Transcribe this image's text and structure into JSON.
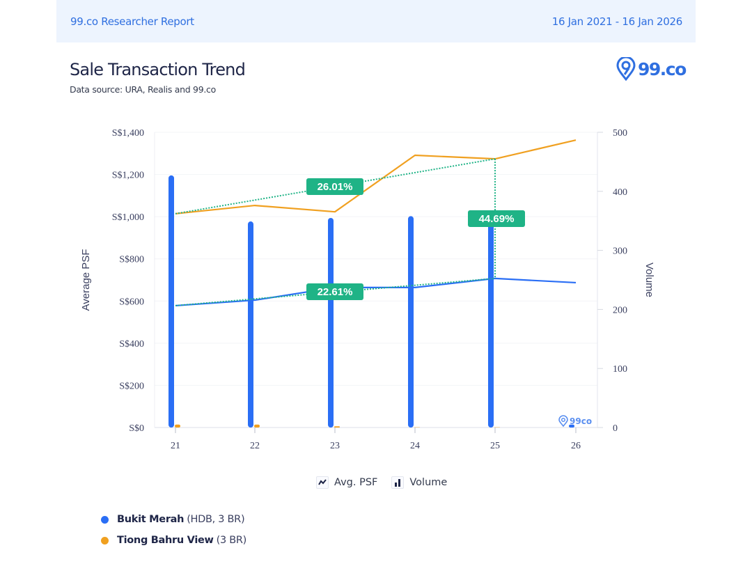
{
  "header": {
    "report_title": "99.co Researcher Report",
    "date_range": "16 Jan 2021 - 16 Jan 2026"
  },
  "page": {
    "title": "Sale Transaction Trend",
    "subtitle": "Data source: URA, Realis and 99.co",
    "logo_text": "99.co",
    "watermark_text": "99co"
  },
  "legend": {
    "metrics": [
      {
        "label": "Avg. PSF",
        "icon": "line-chart-icon"
      },
      {
        "label": "Volume",
        "icon": "bar-chart-icon"
      }
    ],
    "series": [
      {
        "name": "Bukit Merah",
        "detail": "(HDB, 3 BR)",
        "color": "#2a6ef5"
      },
      {
        "name": "Tiong Bahru View",
        "detail": "(3 BR)",
        "color": "#f0a020"
      }
    ]
  },
  "colors": {
    "blue": "#2a6ef5",
    "orange": "#f0a020",
    "trend_green": "#1fb386",
    "label_green": "#1fb386"
  },
  "chart_data": {
    "type": "bar+line",
    "title": "Sale Transaction Trend",
    "categories": [
      "21",
      "22",
      "23",
      "24",
      "25",
      "26"
    ],
    "y_left": {
      "label": "Average PSF",
      "ylim": [
        0,
        1400
      ],
      "ticks": [
        0,
        200,
        400,
        600,
        800,
        1000,
        1200,
        1400
      ],
      "tick_labels": [
        "S$0",
        "S$200",
        "S$400",
        "S$600",
        "S$800",
        "S$1,000",
        "S$1,200",
        "S$1,400"
      ]
    },
    "y_right": {
      "label": "Volume",
      "ylim": [
        0,
        500
      ],
      "ticks": [
        0,
        100,
        200,
        300,
        400,
        500
      ],
      "tick_labels": [
        "0",
        "100",
        "200",
        "300",
        "400",
        "500"
      ]
    },
    "grid": true,
    "series": [
      {
        "name": "Bukit Merah (HDB, 3 BR) Avg. PSF",
        "kind": "line",
        "axis": "left",
        "color": "#2a6ef5",
        "values": [
          578,
          604,
          664,
          664,
          707,
          687
        ]
      },
      {
        "name": "Tiong Bahru View (3 BR) Avg. PSF",
        "kind": "line",
        "axis": "left",
        "color": "#f0a020",
        "values": [
          1014,
          1053,
          1023,
          1291,
          1274,
          1363
        ]
      },
      {
        "name": "Bukit Merah (HDB, 3 BR) Volume",
        "kind": "bar",
        "axis": "right",
        "color": "#2a6ef5",
        "values": [
          427,
          349,
          355,
          358,
          356,
          5
        ]
      },
      {
        "name": "Tiong Bahru View (3 BR) Volume",
        "kind": "bar",
        "axis": "right",
        "color": "#f0a020",
        "values": [
          5,
          5,
          2,
          0.5,
          0.5,
          0
        ]
      }
    ],
    "annotations": [
      {
        "label": "26.01%",
        "series": "Tiong Bahru View (3 BR) Avg. PSF",
        "from": "21",
        "to": "25"
      },
      {
        "label": "22.61%",
        "series": "Bukit Merah (HDB, 3 BR) Avg. PSF",
        "from": "21",
        "to": "25"
      },
      {
        "label": "44.69%",
        "type": "gap",
        "at": "25",
        "between": [
          "Tiong Bahru View (3 BR) Avg. PSF",
          "Bukit Merah (HDB, 3 BR) Avg. PSF"
        ]
      }
    ]
  }
}
